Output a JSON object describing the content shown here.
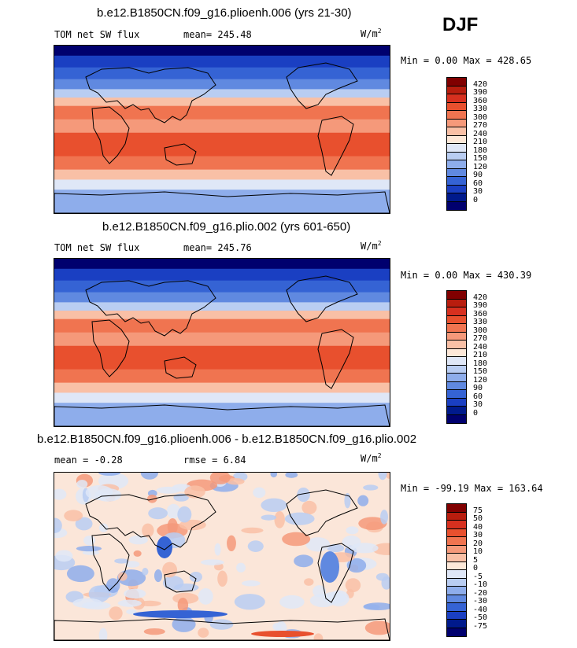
{
  "season": "DJF",
  "panels": [
    {
      "title": "b.e12.B1850CN.f09_g16.plioenh.006 (yrs 21-30)",
      "left": "TOM net SW flux",
      "mean": "mean= 245.48",
      "units": "W/m",
      "units_sup": "2",
      "minmax": "Min =    0.00 Max = 428.65",
      "levels": [
        "420",
        "390",
        "360",
        "330",
        "300",
        "270",
        "240",
        "210",
        "180",
        "150",
        "120",
        "90",
        "60",
        "30",
        "0"
      ],
      "colors": [
        "#800000",
        "#b81d0e",
        "#d7301f",
        "#e8502e",
        "#f07450",
        "#f5997a",
        "#f9c0a6",
        "#fde8d8",
        "#dfe7f7",
        "#b9cdf2",
        "#8eadeb",
        "#6089e0",
        "#3563d4",
        "#1a3fc2",
        "#001a8c",
        "#00006e"
      ]
    },
    {
      "title": "b.e12.B1850CN.f09_g16.plio.002 (yrs 601-650)",
      "left": "TOM net SW flux",
      "mean": "mean= 245.76",
      "units": "W/m",
      "units_sup": "2",
      "minmax": "Min =    0.00 Max = 430.39",
      "levels": [
        "420",
        "390",
        "360",
        "330",
        "300",
        "270",
        "240",
        "210",
        "180",
        "150",
        "120",
        "90",
        "60",
        "30",
        "0"
      ],
      "colors": [
        "#800000",
        "#b81d0e",
        "#d7301f",
        "#e8502e",
        "#f07450",
        "#f5997a",
        "#f9c0a6",
        "#fde8d8",
        "#dfe7f7",
        "#b9cdf2",
        "#8eadeb",
        "#6089e0",
        "#3563d4",
        "#1a3fc2",
        "#001a8c",
        "#00006e"
      ]
    },
    {
      "title": "b.e12.B1850CN.f09_g16.plioenh.006 - b.e12.B1850CN.f09_g16.plio.002",
      "left": "mean =  -0.28",
      "mean": "rmse =   6.84",
      "units": "W/m",
      "units_sup": "2",
      "minmax": "Min = -99.19 Max = 163.64",
      "levels": [
        "75",
        "50",
        "40",
        "30",
        "20",
        "10",
        "5",
        "0",
        "-5",
        "-10",
        "-20",
        "-30",
        "-40",
        "-50",
        "-75"
      ],
      "colors": [
        "#800000",
        "#b81d0e",
        "#d7301f",
        "#e8502e",
        "#f07450",
        "#f5997a",
        "#f9c0a6",
        "#fde8d8",
        "#dfe7f7",
        "#b9cdf2",
        "#8eadeb",
        "#6089e0",
        "#3563d4",
        "#1a3fc2",
        "#001a8c",
        "#00006e"
      ]
    }
  ],
  "chart_data": [
    {
      "type": "heatmap",
      "title": "b.e12.B1850CN.f09_g16.plioenh.006 (yrs 21-30)",
      "variable": "TOM net SW flux",
      "units": "W/m2",
      "season": "DJF",
      "mean": 245.48,
      "min": 0.0,
      "max": 428.65,
      "contour_levels": [
        0,
        30,
        60,
        90,
        120,
        150,
        180,
        210,
        240,
        270,
        300,
        330,
        360,
        390,
        420
      ]
    },
    {
      "type": "heatmap",
      "title": "b.e12.B1850CN.f09_g16.plio.002 (yrs 601-650)",
      "variable": "TOM net SW flux",
      "units": "W/m2",
      "season": "DJF",
      "mean": 245.76,
      "min": 0.0,
      "max": 430.39,
      "contour_levels": [
        0,
        30,
        60,
        90,
        120,
        150,
        180,
        210,
        240,
        270,
        300,
        330,
        360,
        390,
        420
      ]
    },
    {
      "type": "heatmap",
      "title": "b.e12.B1850CN.f09_g16.plioenh.006 - b.e12.B1850CN.f09_g16.plio.002",
      "units": "W/m2",
      "season": "DJF",
      "mean": -0.28,
      "rmse": 6.84,
      "min": -99.19,
      "max": 163.64,
      "contour_levels": [
        -75,
        -50,
        -40,
        -30,
        -20,
        -10,
        -5,
        0,
        5,
        10,
        20,
        30,
        40,
        50,
        75
      ]
    }
  ]
}
